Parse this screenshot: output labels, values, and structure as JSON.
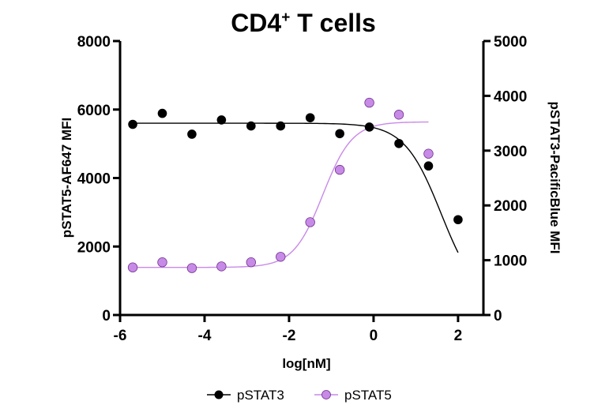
{
  "chart_data": {
    "type": "scatter",
    "title_main": "CD4",
    "title_sup": "+",
    "title_rest": " T cells",
    "xlabel": "log[nM]",
    "ylabel_left": "pSTAT5-AF647 MFI",
    "ylabel_right": "pSTAT3-PacificBlue MFI",
    "xlim": [
      -6,
      2.6
    ],
    "xticks": [
      -6,
      -4,
      -2,
      0,
      2
    ],
    "xtick_labels": [
      "-6",
      "-4",
      "-2",
      "0",
      "2"
    ],
    "ylim_left": [
      0,
      8000
    ],
    "yticks_left": [
      0,
      2000,
      4000,
      6000,
      8000
    ],
    "ytick_labels_left": [
      "0",
      "2000",
      "4000",
      "6000",
      "8000"
    ],
    "ylim_right": [
      0,
      5000
    ],
    "yticks_right": [
      0,
      1000,
      2000,
      3000,
      4000,
      5000
    ],
    "ytick_labels_right": [
      "0",
      "1000",
      "2000",
      "3000",
      "4000",
      "5000"
    ],
    "grid": false,
    "legend_position": "bottom",
    "series": [
      {
        "name": "pSTAT3",
        "axis": "right",
        "color": "#000000",
        "marker_fill": "#000000",
        "line_color": "#000000",
        "x": [
          -5.7,
          -5.0,
          -4.3,
          -3.6,
          -2.9,
          -2.2,
          -1.5,
          -0.8,
          -0.1,
          0.6,
          1.3,
          2.0
        ],
        "values": [
          3480,
          3680,
          3300,
          3560,
          3450,
          3450,
          3600,
          3310,
          3430,
          3130,
          2720,
          1740
        ],
        "fit": {
          "bottom": 200,
          "top": 3500,
          "ic50_log": 1.6,
          "hill": -1.0
        }
      },
      {
        "name": "pSTAT5",
        "axis": "left",
        "color": "#b86ee0",
        "marker_fill": "#c78ae6",
        "line_color": "#c98ae8",
        "x": [
          -5.7,
          -5.0,
          -4.3,
          -3.6,
          -2.9,
          -2.2,
          -1.5,
          -0.8,
          -0.1,
          0.6,
          1.3
        ],
        "values": [
          1390,
          1540,
          1370,
          1420,
          1540,
          1700,
          2710,
          4240,
          6200,
          5850,
          4710
        ],
        "fit": {
          "bottom": 1390,
          "top": 5640,
          "ic50_log": -1.2,
          "hill": 1.25
        }
      }
    ]
  }
}
